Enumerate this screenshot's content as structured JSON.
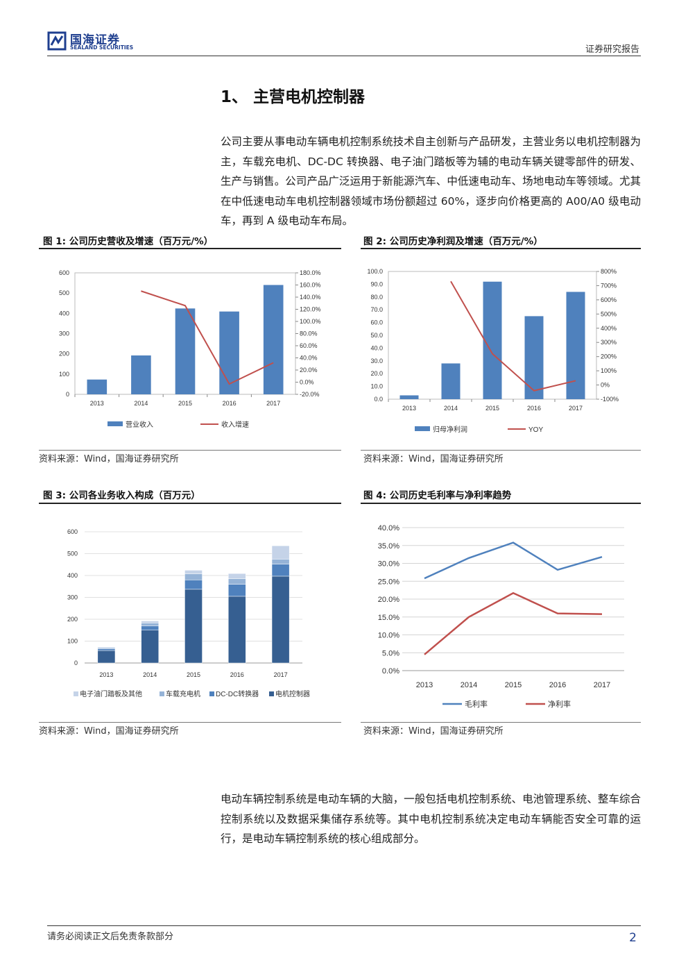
{
  "header": {
    "logo_cn": "国海证券",
    "logo_en": "SEALAND SECURITIES",
    "report_type": "证券研究报告"
  },
  "section_heading": "1、 主营电机控制器",
  "paragraphs": {
    "intro": "公司主要从事电动车辆电机控制系统技术自主创新与产品研发，主营业务以电机控制器为主，车载充电机、DC-DC 转换器、电子油门踏板等为辅的电动车辆关键零部件的研发、生产与销售。公司产品广泛运用于新能源汽车、中低速电动车、场地电动车等领域。尤其在中低速电动车电机控制器领域市场份额超过 60%，逐步向价格更高的 A00/A0 级电动车，再到 A 级电动车布局。",
    "closing": "电动车辆控制系统是电动车辆的大脑，一般包括电机控制系统、电池管理系统、整车综合控制系统以及数据采集储存系统等。其中电机控制系统决定电动车辆能否安全可靠的运行，是电动车辆控制系统的核心组成部分。"
  },
  "figures": {
    "fig1": {
      "title": "图 1: 公司历史营收及增速（百万元/%）",
      "source": "资料来源：Wind，国海证券研究所"
    },
    "fig2": {
      "title": "图 2: 公司历史净利润及增速（百万元/%）",
      "source": "资料来源：Wind，国海证券研究所"
    },
    "fig3": {
      "title": "图 3: 公司各业务收入构成（百万元）",
      "source": "资料来源：Wind，国海证券研究所"
    },
    "fig4": {
      "title": "图 4: 公司历史毛利率与净利率趋势",
      "source": "资料来源：Wind，国海证券研究所"
    }
  },
  "footer": {
    "note": "请务必阅读正文后免责条款部分",
    "page_number": "2"
  },
  "colors": {
    "bar_blue": "#4f81bd",
    "line_red": "#c0504d",
    "brand_blue": "#1f3f8f",
    "stack_dark": "#365f91",
    "stack_mid": "#4f81bd",
    "stack_light": "#95b3d7",
    "stack_lightest": "#c5d3e8"
  },
  "chart_data": [
    {
      "id": "fig1",
      "type": "bar",
      "categories": [
        "2013",
        "2014",
        "2015",
        "2016",
        "2017"
      ],
      "series": [
        {
          "name": "营业收入",
          "type": "bar",
          "axis": "left",
          "values": [
            73,
            192,
            424,
            409,
            540
          ]
        },
        {
          "name": "收入增速",
          "type": "line",
          "axis": "right",
          "values": [
            null,
            1.5,
            1.26,
            -0.03,
            0.32
          ]
        }
      ],
      "ylim": [
        0,
        600
      ],
      "yticks": [
        "0",
        "100",
        "200",
        "300",
        "400",
        "500",
        "600"
      ],
      "y2lim": [
        -0.2,
        1.8
      ],
      "y2ticks": [
        "-20.0%",
        "0.0%",
        "20.0%",
        "40.0%",
        "60.0%",
        "80.0%",
        "100.0%",
        "120.0%",
        "140.0%",
        "160.0%",
        "180.0%"
      ],
      "legend": "bottom"
    },
    {
      "id": "fig2",
      "type": "bar",
      "categories": [
        "2013",
        "2014",
        "2015",
        "2016",
        "2017"
      ],
      "series": [
        {
          "name": "归母净利润",
          "type": "bar",
          "axis": "left",
          "values": [
            3,
            28,
            92,
            65,
            84
          ]
        },
        {
          "name": "YOY",
          "type": "line",
          "axis": "right",
          "values": [
            null,
            7.3,
            2.2,
            -0.4,
            0.3
          ]
        }
      ],
      "ylim": [
        0,
        100
      ],
      "yticks": [
        "0.0",
        "10.0",
        "20.0",
        "30.0",
        "40.0",
        "50.0",
        "60.0",
        "70.0",
        "80.0",
        "90.0",
        "100.0"
      ],
      "y2lim": [
        -1,
        8
      ],
      "y2ticks": [
        "-100%",
        "0%",
        "100%",
        "200%",
        "300%",
        "400%",
        "500%",
        "600%",
        "700%",
        "800%"
      ],
      "legend": "bottom"
    },
    {
      "id": "fig3",
      "type": "bar",
      "stacked": true,
      "categories": [
        "2013",
        "2014",
        "2015",
        "2016",
        "2017"
      ],
      "series": [
        {
          "name": "电机控制器",
          "values": [
            57,
            150,
            337,
            305,
            397
          ]
        },
        {
          "name": "DC-DC转换器",
          "values": [
            8,
            20,
            43,
            55,
            55
          ]
        },
        {
          "name": "车载充电机",
          "values": [
            5,
            13,
            28,
            25,
            23
          ]
        },
        {
          "name": "电子油门踏板及其他",
          "values": [
            3,
            9,
            16,
            24,
            61
          ]
        }
      ],
      "legend_order": [
        "电子油门踏板及其他",
        "车载充电机",
        "DC-DC转换器",
        "电机控制器"
      ],
      "ylim": [
        0,
        600
      ],
      "yticks": [
        "0",
        "100",
        "200",
        "300",
        "400",
        "500",
        "600"
      ],
      "legend": "bottom"
    },
    {
      "id": "fig4",
      "type": "line",
      "categories": [
        "2013",
        "2014",
        "2015",
        "2016",
        "2017"
      ],
      "series": [
        {
          "name": "毛利率",
          "values": [
            0.258,
            0.315,
            0.358,
            0.282,
            0.318
          ]
        },
        {
          "name": "净利率",
          "values": [
            0.045,
            0.15,
            0.217,
            0.16,
            0.158
          ]
        }
      ],
      "ylim": [
        0,
        0.4
      ],
      "yticks": [
        "0.0%",
        "5.0%",
        "10.0%",
        "15.0%",
        "20.0%",
        "25.0%",
        "30.0%",
        "35.0%",
        "40.0%"
      ],
      "grid": true,
      "legend": "bottom"
    }
  ]
}
